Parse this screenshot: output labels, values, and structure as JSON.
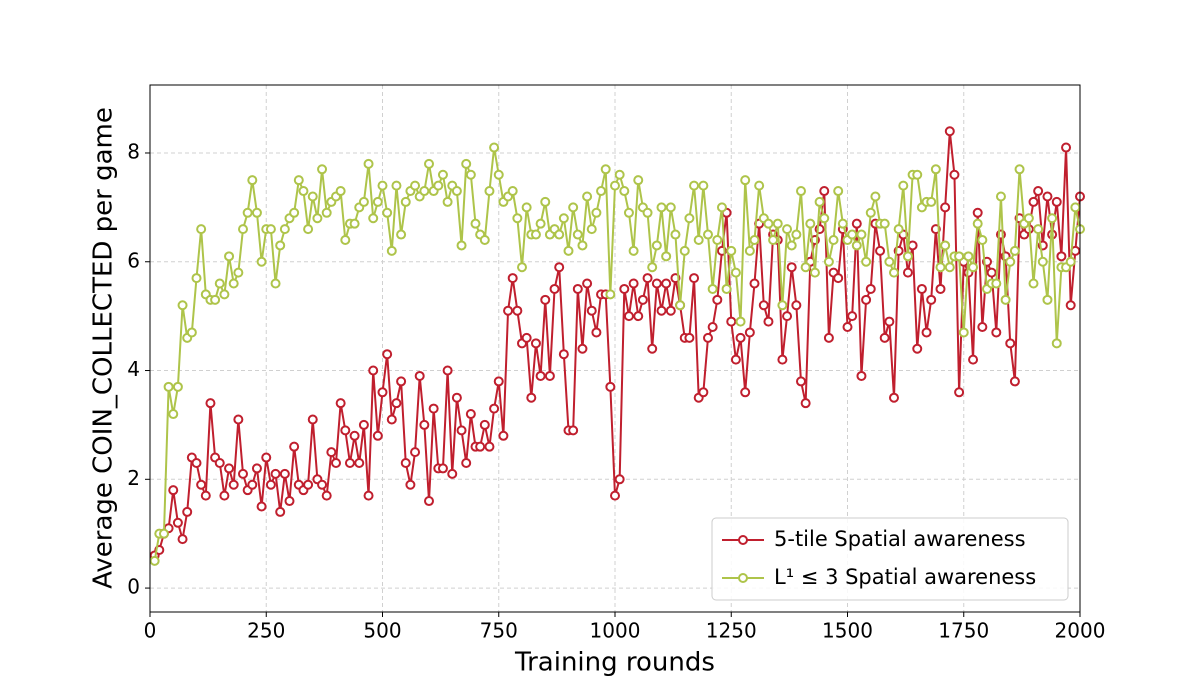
{
  "chart_data": {
    "type": "line",
    "xlabel": "Training rounds",
    "ylabel": "Average COIN_COLLECTED per game",
    "xlim": [
      0,
      2000
    ],
    "ylim": [
      -0.44,
      9.25
    ],
    "xticks": [
      0,
      250,
      500,
      750,
      1000,
      1250,
      1500,
      1750,
      2000
    ],
    "yticks": [
      0,
      2,
      4,
      6,
      8
    ],
    "grid": true,
    "legend": "lower right",
    "x": [
      10,
      20,
      30,
      40,
      50,
      60,
      70,
      80,
      90,
      100,
      110,
      120,
      130,
      140,
      150,
      160,
      170,
      180,
      190,
      200,
      210,
      220,
      230,
      240,
      250,
      260,
      270,
      280,
      290,
      300,
      310,
      320,
      330,
      340,
      350,
      360,
      370,
      380,
      390,
      400,
      410,
      420,
      430,
      440,
      450,
      460,
      470,
      480,
      490,
      500,
      510,
      520,
      530,
      540,
      550,
      560,
      570,
      580,
      590,
      600,
      610,
      620,
      630,
      640,
      650,
      660,
      670,
      680,
      690,
      700,
      710,
      720,
      730,
      740,
      750,
      760,
      770,
      780,
      790,
      800,
      810,
      820,
      830,
      840,
      850,
      860,
      870,
      880,
      890,
      900,
      910,
      920,
      930,
      940,
      950,
      960,
      970,
      980,
      990,
      1000,
      1010,
      1020,
      1030,
      1040,
      1050,
      1060,
      1070,
      1080,
      1090,
      1100,
      1110,
      1120,
      1130,
      1140,
      1150,
      1160,
      1170,
      1180,
      1190,
      1200,
      1210,
      1220,
      1230,
      1240,
      1250,
      1260,
      1270,
      1280,
      1290,
      1300,
      1310,
      1320,
      1330,
      1340,
      1350,
      1360,
      1370,
      1380,
      1390,
      1400,
      1410,
      1420,
      1430,
      1440,
      1450,
      1460,
      1470,
      1480,
      1490,
      1500,
      1510,
      1520,
      1530,
      1540,
      1550,
      1560,
      1570,
      1580,
      1590,
      1600,
      1610,
      1620,
      1630,
      1640,
      1650,
      1660,
      1670,
      1680,
      1690,
      1700,
      1710,
      1720,
      1730,
      1740,
      1750,
      1760,
      1770,
      1780,
      1790,
      1800,
      1810,
      1820,
      1830,
      1840,
      1850,
      1860,
      1870,
      1880,
      1890,
      1900,
      1910,
      1920,
      1930,
      1940,
      1950,
      1960,
      1970,
      1980,
      1990,
      2000
    ],
    "series": [
      {
        "name": "5-tile Spatial awareness",
        "color": "#c01f2e",
        "values": [
          0.6,
          0.7,
          1.0,
          1.1,
          1.8,
          1.2,
          0.9,
          1.4,
          2.4,
          2.3,
          1.9,
          1.7,
          3.4,
          2.4,
          2.3,
          1.7,
          2.2,
          1.9,
          3.1,
          2.1,
          1.8,
          1.9,
          2.2,
          1.5,
          2.4,
          1.9,
          2.1,
          1.4,
          2.1,
          1.6,
          2.6,
          1.9,
          1.8,
          1.9,
          3.1,
          2.0,
          1.9,
          1.7,
          2.5,
          2.3,
          3.4,
          2.9,
          2.3,
          2.8,
          2.3,
          3.0,
          1.7,
          4.0,
          2.8,
          3.6,
          4.3,
          3.1,
          3.4,
          3.8,
          2.3,
          1.9,
          2.5,
          3.9,
          3.0,
          1.6,
          3.3,
          2.2,
          2.2,
          4.0,
          2.1,
          3.5,
          2.9,
          2.3,
          3.2,
          2.6,
          2.6,
          3.0,
          2.6,
          3.3,
          3.8,
          2.8,
          5.1,
          5.7,
          5.1,
          4.5,
          4.6,
          3.5,
          4.5,
          3.9,
          5.3,
          3.9,
          5.5,
          5.9,
          4.3,
          2.9,
          2.9,
          5.5,
          4.4,
          5.6,
          5.1,
          4.7,
          5.4,
          5.4,
          3.7,
          1.7,
          2.0,
          5.5,
          5.0,
          5.6,
          5.0,
          5.3,
          5.7,
          4.4,
          5.6,
          5.1,
          5.6,
          5.1,
          5.7,
          5.2,
          4.6,
          4.6,
          5.7,
          3.5,
          3.6,
          4.6,
          4.8,
          5.3,
          6.2,
          6.9,
          4.9,
          4.2,
          4.6,
          3.6,
          4.7,
          5.6,
          6.7,
          5.2,
          4.9,
          6.5,
          6.4,
          4.2,
          5.0,
          5.9,
          5.2,
          3.8,
          3.4,
          6.0,
          6.4,
          6.6,
          7.3,
          4.6,
          5.8,
          5.7,
          6.6,
          4.8,
          5.0,
          6.7,
          3.9,
          5.3,
          5.5,
          6.7,
          6.2,
          4.6,
          4.9,
          3.5,
          6.2,
          6.5,
          5.8,
          6.3,
          4.4,
          5.5,
          4.7,
          5.3,
          6.6,
          5.5,
          7.0,
          8.4,
          7.6,
          3.6,
          6.0,
          5.8,
          4.2,
          6.9,
          4.8,
          6.0,
          5.8,
          4.7,
          6.5,
          6.1,
          4.5,
          3.8,
          6.8,
          6.5,
          6.6,
          7.1,
          7.3,
          6.3,
          7.2,
          6.5,
          7.1,
          6.1,
          8.1,
          5.2,
          6.2,
          7.2
        ]
      },
      {
        "name": "L¹ ≤ 3 Spatial awareness",
        "color": "#aec44a",
        "values": [
          0.5,
          1.0,
          1.0,
          3.7,
          3.2,
          3.7,
          5.2,
          4.6,
          4.7,
          5.7,
          6.6,
          5.4,
          5.3,
          5.3,
          5.6,
          5.4,
          6.1,
          5.6,
          5.8,
          6.6,
          6.9,
          7.5,
          6.9,
          6.0,
          6.6,
          6.6,
          5.6,
          6.3,
          6.6,
          6.8,
          6.9,
          7.5,
          7.3,
          6.6,
          7.2,
          6.8,
          7.7,
          6.9,
          7.1,
          7.2,
          7.3,
          6.4,
          6.7,
          6.7,
          7.0,
          7.1,
          7.8,
          6.8,
          7.1,
          7.4,
          6.9,
          6.2,
          7.4,
          6.5,
          7.1,
          7.3,
          7.4,
          7.2,
          7.3,
          7.8,
          7.3,
          7.4,
          7.6,
          7.1,
          7.4,
          7.3,
          6.3,
          7.8,
          7.6,
          6.7,
          6.5,
          6.4,
          7.3,
          8.1,
          7.6,
          7.1,
          7.2,
          7.3,
          6.8,
          5.9,
          7.0,
          6.5,
          6.5,
          6.7,
          7.1,
          6.5,
          6.6,
          6.5,
          6.8,
          6.2,
          7.0,
          6.5,
          6.3,
          7.2,
          6.6,
          6.9,
          7.3,
          7.7,
          5.4,
          7.4,
          7.6,
          7.3,
          6.9,
          6.2,
          7.5,
          7.0,
          6.9,
          5.9,
          6.3,
          7.0,
          6.1,
          7.0,
          6.5,
          5.2,
          6.2,
          6.8,
          7.4,
          6.4,
          7.4,
          6.5,
          5.5,
          6.4,
          7.0,
          5.5,
          6.2,
          5.8,
          4.9,
          7.5,
          6.2,
          6.4,
          7.4,
          6.8,
          6.7,
          6.4,
          6.7,
          5.2,
          6.6,
          6.3,
          6.5,
          7.3,
          5.9,
          6.7,
          5.8,
          7.1,
          6.8,
          6.0,
          6.4,
          7.3,
          6.7,
          6.4,
          6.5,
          6.3,
          6.5,
          6.0,
          6.9,
          7.2,
          6.7,
          6.7,
          6.0,
          5.8,
          6.6,
          7.4,
          6.1,
          7.6,
          7.6,
          7.0,
          7.1,
          7.1,
          7.7,
          5.9,
          6.3,
          5.9,
          6.1,
          6.1,
          4.7,
          6.1,
          5.9,
          6.7,
          6.4,
          5.5,
          5.6,
          5.6,
          7.2,
          5.3,
          6.0,
          6.2,
          7.7,
          6.7,
          6.8,
          5.6,
          6.6,
          6.0,
          5.3,
          6.8,
          4.5,
          5.9,
          5.9,
          6.0,
          7.0,
          6.6
        ]
      }
    ]
  }
}
